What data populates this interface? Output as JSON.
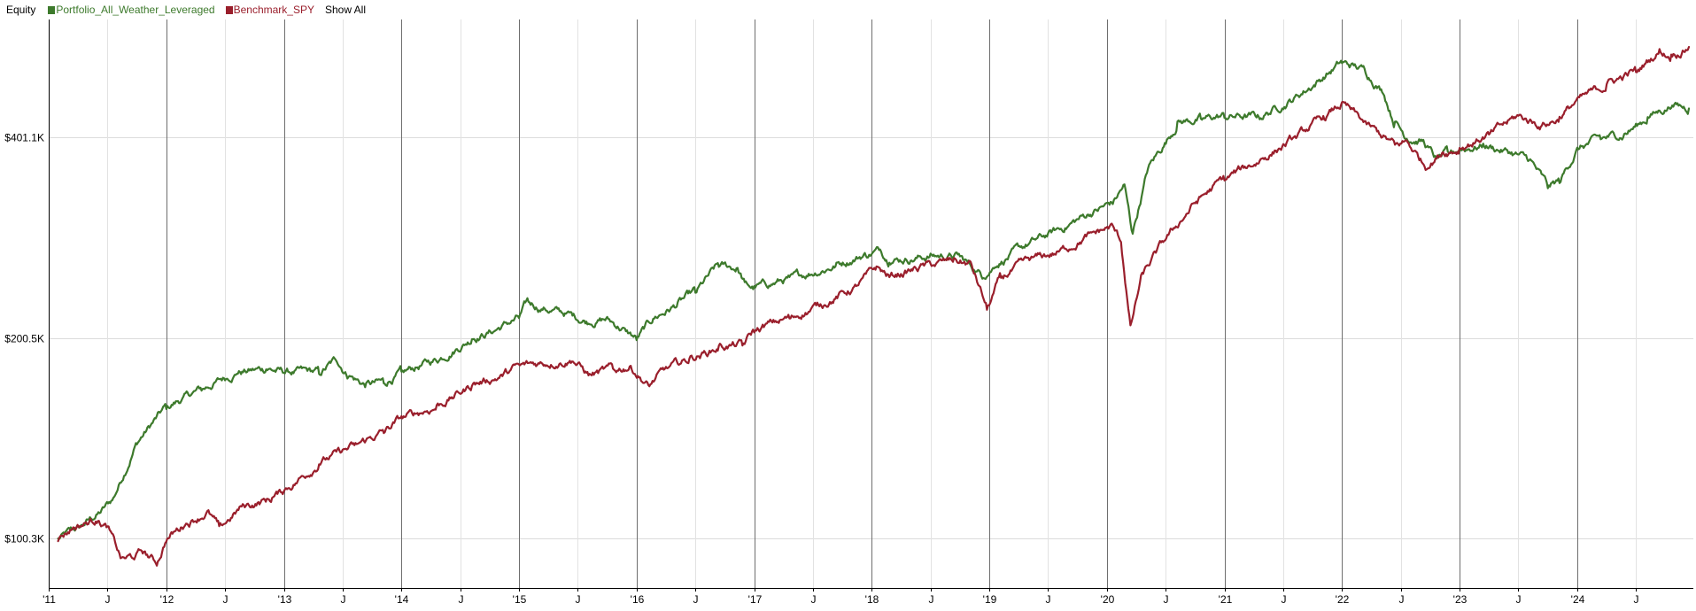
{
  "legend": {
    "title": "Equity",
    "show_all": "Show All"
  },
  "chart_data": {
    "type": "line",
    "title": "Equity",
    "y_scale": "log",
    "grid": true,
    "legend_placement": "top-left",
    "y_ticks": [
      {
        "label": "$100.3K",
        "value": 100300
      },
      {
        "label": "$200.5K",
        "value": 200500
      },
      {
        "label": "$401.1K",
        "value": 401100
      }
    ],
    "x_ticks": [
      {
        "label": "'11",
        "x": 2011.0,
        "major": true
      },
      {
        "label": "J",
        "x": 2011.5,
        "major": false
      },
      {
        "label": "'12",
        "x": 2012.0,
        "major": true
      },
      {
        "label": "J",
        "x": 2012.5,
        "major": false
      },
      {
        "label": "'13",
        "x": 2013.0,
        "major": true
      },
      {
        "label": "J",
        "x": 2013.5,
        "major": false
      },
      {
        "label": "'14",
        "x": 2014.0,
        "major": true
      },
      {
        "label": "J",
        "x": 2014.5,
        "major": false
      },
      {
        "label": "'15",
        "x": 2015.0,
        "major": true
      },
      {
        "label": "J",
        "x": 2015.5,
        "major": false
      },
      {
        "label": "'16",
        "x": 2016.0,
        "major": true
      },
      {
        "label": "J",
        "x": 2016.5,
        "major": false
      },
      {
        "label": "'17",
        "x": 2017.0,
        "major": true
      },
      {
        "label": "J",
        "x": 2017.5,
        "major": false
      },
      {
        "label": "'18",
        "x": 2018.0,
        "major": true
      },
      {
        "label": "J",
        "x": 2018.5,
        "major": false
      },
      {
        "label": "'19",
        "x": 2019.0,
        "major": true
      },
      {
        "label": "J",
        "x": 2019.5,
        "major": false
      },
      {
        "label": "'20",
        "x": 2020.0,
        "major": true
      },
      {
        "label": "J",
        "x": 2020.5,
        "major": false
      },
      {
        "label": "'21",
        "x": 2021.0,
        "major": true
      },
      {
        "label": "J",
        "x": 2021.5,
        "major": false
      },
      {
        "label": "'22",
        "x": 2022.0,
        "major": true
      },
      {
        "label": "J",
        "x": 2022.5,
        "major": false
      },
      {
        "label": "'23",
        "x": 2023.0,
        "major": true
      },
      {
        "label": "J",
        "x": 2023.5,
        "major": false
      },
      {
        "label": "'24",
        "x": 2024.0,
        "major": true
      },
      {
        "label": "J",
        "x": 2024.5,
        "major": false
      }
    ],
    "series": [
      {
        "name": "Portfolio_All_Weather_Leveraged",
        "color": "#3d7a2c",
        "points": [
          [
            2011.08,
            100000
          ],
          [
            2011.25,
            104000
          ],
          [
            2011.45,
            110000
          ],
          [
            2011.55,
            115000
          ],
          [
            2011.75,
            140000
          ],
          [
            2012.0,
            158000
          ],
          [
            2012.3,
            168000
          ],
          [
            2012.6,
            178000
          ],
          [
            2012.85,
            180000
          ],
          [
            2013.0,
            178000
          ],
          [
            2013.3,
            178000
          ],
          [
            2013.45,
            186000
          ],
          [
            2013.55,
            176000
          ],
          [
            2013.7,
            170000
          ],
          [
            2013.85,
            172000
          ],
          [
            2014.0,
            178000
          ],
          [
            2014.3,
            186000
          ],
          [
            2014.6,
            200000
          ],
          [
            2014.8,
            206000
          ],
          [
            2015.0,
            215000
          ],
          [
            2015.08,
            228000
          ],
          [
            2015.2,
            222000
          ],
          [
            2015.4,
            218000
          ],
          [
            2015.6,
            212000
          ],
          [
            2015.75,
            214000
          ],
          [
            2015.9,
            206000
          ],
          [
            2016.0,
            200000
          ],
          [
            2016.15,
            215000
          ],
          [
            2016.35,
            225000
          ],
          [
            2016.5,
            235000
          ],
          [
            2016.7,
            258000
          ],
          [
            2016.85,
            255000
          ],
          [
            2016.92,
            242000
          ],
          [
            2017.0,
            238000
          ],
          [
            2017.3,
            246000
          ],
          [
            2017.7,
            258000
          ],
          [
            2017.95,
            268000
          ],
          [
            2018.08,
            272000
          ],
          [
            2018.15,
            262000
          ],
          [
            2018.5,
            266000
          ],
          [
            2018.75,
            266000
          ],
          [
            2018.95,
            248000
          ],
          [
            2019.05,
            258000
          ],
          [
            2019.3,
            275000
          ],
          [
            2019.6,
            292000
          ],
          [
            2019.85,
            308000
          ],
          [
            2020.05,
            320000
          ],
          [
            2020.15,
            340000
          ],
          [
            2020.2,
            300000
          ],
          [
            2020.22,
            288000
          ],
          [
            2020.35,
            360000
          ],
          [
            2020.6,
            420000
          ],
          [
            2020.8,
            428000
          ],
          [
            2021.0,
            432000
          ],
          [
            2021.3,
            430000
          ],
          [
            2021.6,
            460000
          ],
          [
            2021.85,
            495000
          ],
          [
            2022.0,
            520000
          ],
          [
            2022.2,
            505000
          ],
          [
            2022.35,
            470000
          ],
          [
            2022.45,
            420000
          ],
          [
            2022.55,
            400000
          ],
          [
            2022.7,
            395000
          ],
          [
            2022.8,
            372000
          ],
          [
            2022.9,
            380000
          ],
          [
            2023.0,
            385000
          ],
          [
            2023.2,
            390000
          ],
          [
            2023.45,
            380000
          ],
          [
            2023.6,
            370000
          ],
          [
            2023.75,
            338000
          ],
          [
            2023.85,
            345000
          ],
          [
            2024.0,
            385000
          ],
          [
            2024.2,
            400000
          ],
          [
            2024.4,
            405000
          ],
          [
            2024.6,
            428000
          ],
          [
            2024.8,
            448000
          ],
          [
            2024.95,
            443000
          ]
        ]
      },
      {
        "name": "Benchmark_SPY",
        "color": "#9a1f2c",
        "points": [
          [
            2011.08,
            100000
          ],
          [
            2011.2,
            104000
          ],
          [
            2011.4,
            107000
          ],
          [
            2011.5,
            104000
          ],
          [
            2011.62,
            93000
          ],
          [
            2011.7,
            94000
          ],
          [
            2011.8,
            96000
          ],
          [
            2011.92,
            92000
          ],
          [
            2012.0,
            100000
          ],
          [
            2012.15,
            105000
          ],
          [
            2012.35,
            110000
          ],
          [
            2012.45,
            104000
          ],
          [
            2012.65,
            112000
          ],
          [
            2012.9,
            115000
          ],
          [
            2013.0,
            118000
          ],
          [
            2013.3,
            130000
          ],
          [
            2013.6,
            138000
          ],
          [
            2013.85,
            145000
          ],
          [
            2014.0,
            152000
          ],
          [
            2014.3,
            158000
          ],
          [
            2014.6,
            170000
          ],
          [
            2014.85,
            176000
          ],
          [
            2015.0,
            182000
          ],
          [
            2015.2,
            184000
          ],
          [
            2015.45,
            186000
          ],
          [
            2015.6,
            176000
          ],
          [
            2015.8,
            180000
          ],
          [
            2015.95,
            182000
          ],
          [
            2016.1,
            170000
          ],
          [
            2016.25,
            180000
          ],
          [
            2016.45,
            186000
          ],
          [
            2016.7,
            194000
          ],
          [
            2016.9,
            196000
          ],
          [
            2017.0,
            206000
          ],
          [
            2017.3,
            215000
          ],
          [
            2017.6,
            226000
          ],
          [
            2017.85,
            238000
          ],
          [
            2018.05,
            256000
          ],
          [
            2018.15,
            248000
          ],
          [
            2018.4,
            255000
          ],
          [
            2018.7,
            262000
          ],
          [
            2018.85,
            258000
          ],
          [
            2018.98,
            222000
          ],
          [
            2019.1,
            248000
          ],
          [
            2019.35,
            262000
          ],
          [
            2019.6,
            270000
          ],
          [
            2019.85,
            286000
          ],
          [
            2020.05,
            295000
          ],
          [
            2020.12,
            280000
          ],
          [
            2020.2,
            208000
          ],
          [
            2020.3,
            250000
          ],
          [
            2020.55,
            290000
          ],
          [
            2020.75,
            320000
          ],
          [
            2021.0,
            348000
          ],
          [
            2021.3,
            370000
          ],
          [
            2021.6,
            400000
          ],
          [
            2021.85,
            430000
          ],
          [
            2022.0,
            450000
          ],
          [
            2022.2,
            420000
          ],
          [
            2022.45,
            390000
          ],
          [
            2022.55,
            396000
          ],
          [
            2022.72,
            362000
          ],
          [
            2022.85,
            380000
          ],
          [
            2023.0,
            385000
          ],
          [
            2023.25,
            405000
          ],
          [
            2023.5,
            432000
          ],
          [
            2023.7,
            418000
          ],
          [
            2023.85,
            428000
          ],
          [
            2024.0,
            455000
          ],
          [
            2024.25,
            480000
          ],
          [
            2024.5,
            505000
          ],
          [
            2024.7,
            540000
          ],
          [
            2024.8,
            530000
          ],
          [
            2024.95,
            548000
          ]
        ]
      }
    ]
  }
}
